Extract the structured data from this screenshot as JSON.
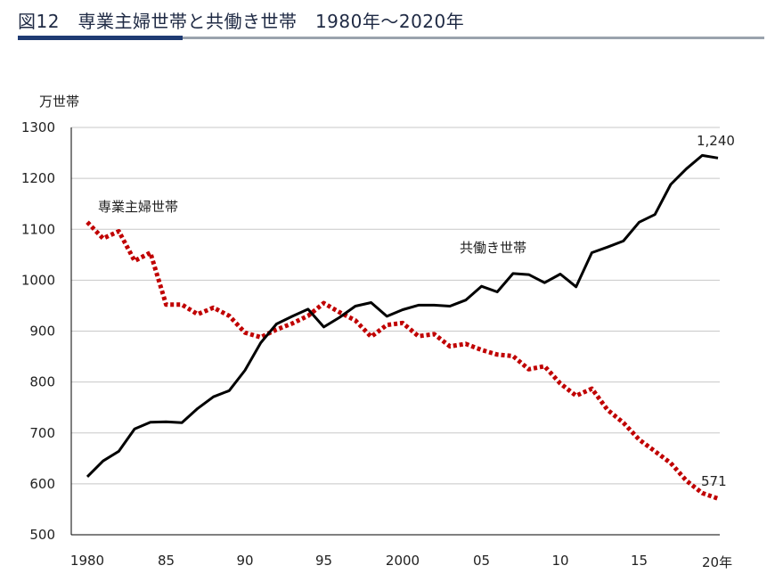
{
  "title": "図12　専業主婦世帯と共働き世帯　1980年～2020年",
  "chart_data": {
    "type": "line",
    "ylabel": "万世帯",
    "x_unit_label": "20年",
    "ylim": [
      500,
      1300
    ],
    "yticks": [
      500,
      600,
      700,
      800,
      900,
      1000,
      1100,
      1200,
      1300
    ],
    "xlim": [
      1980,
      2020
    ],
    "xtick_values": [
      1980,
      1985,
      1990,
      1995,
      2000,
      2005,
      2010,
      2015
    ],
    "xtick_labels": [
      "1980",
      "85",
      "90",
      "95",
      "2000",
      "05",
      "10",
      "15"
    ],
    "grid": true,
    "x": [
      1980,
      1981,
      1982,
      1983,
      1984,
      1985,
      1986,
      1987,
      1988,
      1989,
      1990,
      1991,
      1992,
      1993,
      1994,
      1995,
      1996,
      1997,
      1998,
      1999,
      2000,
      2001,
      2002,
      2003,
      2004,
      2005,
      2006,
      2007,
      2008,
      2009,
      2010,
      2011,
      2012,
      2013,
      2014,
      2015,
      2016,
      2017,
      2018,
      2019,
      2020
    ],
    "series": [
      {
        "name": "専業主婦世帯",
        "color": "#c00000",
        "style": "dotted",
        "values": [
          1114,
          1082,
          1096,
          1038,
          1054,
          952,
          952,
          933,
          946,
          930,
          897,
          888,
          903,
          915,
          930,
          955,
          937,
          921,
          889,
          912,
          916,
          890,
          894,
          870,
          875,
          863,
          854,
          851,
          825,
          831,
          797,
          773,
          787,
          745,
          720,
          687,
          664,
          641,
          606,
          582,
          571
        ]
      },
      {
        "name": "共働き世帯",
        "color": "#000000",
        "style": "solid",
        "values": [
          614,
          645,
          664,
          708,
          721,
          722,
          720,
          748,
          771,
          783,
          823,
          877,
          914,
          929,
          943,
          908,
          927,
          949,
          956,
          929,
          942,
          951,
          951,
          949,
          961,
          988,
          977,
          1013,
          1011,
          995,
          1012,
          987,
          1054,
          1065,
          1077,
          1114,
          1129,
          1188,
          1219,
          1245,
          1240
        ]
      }
    ],
    "annotations": [
      {
        "text": "専業主婦世帯",
        "series": 0
      },
      {
        "text": "共働き世帯",
        "series": 1
      },
      {
        "text": "1,240",
        "series": 1
      },
      {
        "text": "571",
        "series": 0
      }
    ]
  }
}
